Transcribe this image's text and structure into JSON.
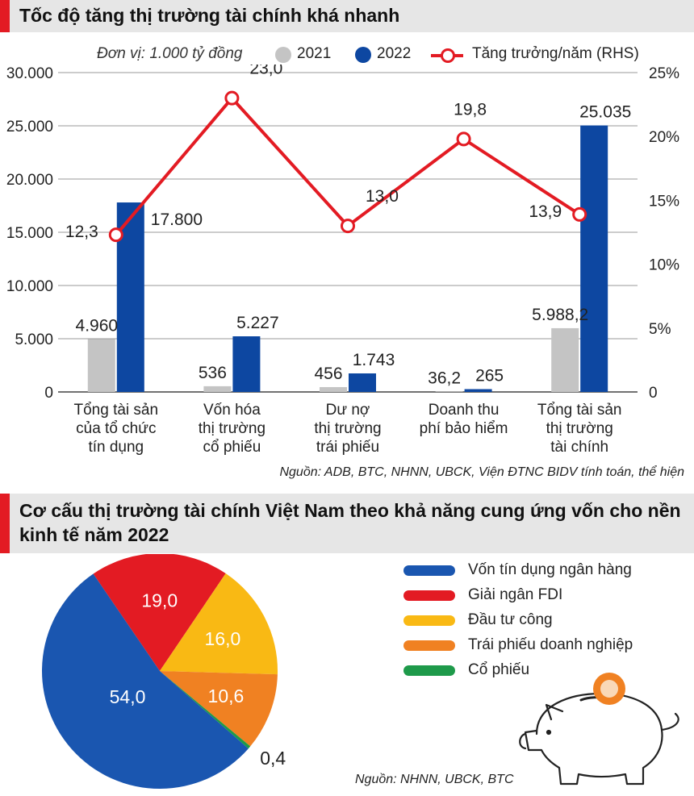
{
  "chart_data": [
    {
      "type": "bar",
      "title": "Tốc độ tăng thị trường tài chính khá nhanh",
      "unit_label": "Đơn vị: 1.000 tỷ đồng",
      "categories": [
        [
          "Tổng tài sản",
          "của tổ chức",
          "tín dụng"
        ],
        [
          "Vốn hóa",
          "thị trường",
          "cổ phiếu"
        ],
        [
          "Dư nợ",
          "thị trường",
          "trái phiếu"
        ],
        [
          "Doanh thu",
          "phí bảo hiểm"
        ],
        [
          "Tổng tài sản",
          "thị trường",
          "tài chính"
        ]
      ],
      "series": [
        {
          "name": "2021",
          "type": "bar",
          "axis": "left",
          "color": "#c4c4c4",
          "values": [
            4960,
            536,
            456,
            36.2,
            5988.2
          ],
          "labels": [
            "4.960",
            "536",
            "456",
            "36,2",
            "5.988,2"
          ]
        },
        {
          "name": "2022",
          "type": "bar",
          "axis": "left",
          "color": "#0d47a1",
          "values": [
            17800,
            5227,
            1743,
            265,
            25035
          ],
          "labels": [
            "17.800",
            "5.227",
            "1.743",
            "265",
            "25.035"
          ]
        },
        {
          "name": "Tăng trưởng/năm (RHS)",
          "type": "line",
          "axis": "right",
          "color": "#e31b23",
          "values": [
            12.3,
            23.0,
            13.0,
            19.8,
            13.9
          ],
          "labels": [
            "12,3",
            "23,0",
            "13,0",
            "19,8",
            "13,9"
          ]
        }
      ],
      "ylim": [
        0,
        30000
      ],
      "y_ticks": [
        "0",
        "5.000",
        "10.000",
        "15.000",
        "20.000",
        "25.000",
        "30.000"
      ],
      "y2lim": [
        0,
        25
      ],
      "y2_ticks": [
        "0",
        "5%",
        "10%",
        "15%",
        "20%",
        "25%"
      ],
      "grid": true,
      "legend_position": "top",
      "source": "Nguồn: ADB, BTC, NHNN, UBCK, Viện ĐTNC BIDV tính toán, thể hiện"
    },
    {
      "type": "pie",
      "title": "Cơ cấu thị trường tài chính Việt Nam theo khả năng cung ứng vốn cho nền kinh tế năm 2022",
      "slices": [
        {
          "label": "Vốn tín dụng ngân hàng",
          "value": 54.0,
          "value_label": "54,0",
          "color": "#1a56b0"
        },
        {
          "label": "Giải ngân FDI",
          "value": 19.0,
          "value_label": "19,0",
          "color": "#e31b23"
        },
        {
          "label": "Đầu tư công",
          "value": 16.0,
          "value_label": "16,0",
          "color": "#f9b914"
        },
        {
          "label": "Trái phiếu doanh nghiệp",
          "value": 10.6,
          "value_label": "10,6",
          "color": "#f08122"
        },
        {
          "label": "Cổ phiếu",
          "value": 0.4,
          "value_label": "0,4",
          "color": "#1e9a4a"
        }
      ],
      "legend_position": "right",
      "source": "Nguồn: NHNN, UBCK, BTC"
    }
  ],
  "decoration": {
    "icon": "piggy-bank-icon",
    "coin_color": "#f08122"
  }
}
